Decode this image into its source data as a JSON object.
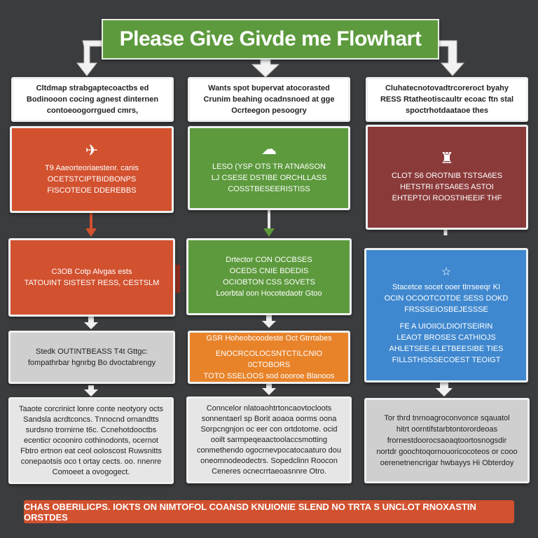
{
  "title": "Please Give Givde me Flowhart",
  "columns": [
    {
      "header_lines": [
        "Cltdmap strabgaptecoactbs ed",
        "Bodinooon cocing agnest dinternen",
        "contoeoogorrgued cmrs,"
      ],
      "box1": {
        "icon": "rocket-icon",
        "icon_glyph": "✈",
        "lines": [
          "T9 Aaeorteoriaestenr. canis",
          "OCETSTCIPTBIDBONPS",
          "FISCOTEOE DDEREBBS"
        ]
      },
      "box2": {
        "lines": [
          "C3OB Cotp Alvgas ests",
          "TATOUINT SISTEST RESS, CESTSLM"
        ]
      },
      "box3": {
        "lines": [
          "Stedk OUTINTBEASS T4t Gttgc:",
          "fompathrbar hgnrbg Bo dvoctabrengy"
        ]
      },
      "box4": {
        "lines": [
          "Taaote corcrinict lonre conte neotyory octs",
          "Sandsla acrdtconcs. Tnnocnd ornandtts",
          "surdsno trornirne t6c. Ccnehotdooctbs",
          "ecenticr ocooniro cothinodonts, ocernot",
          "Fbtro ertnon eat ceol ooloscost Ruwsnitts",
          "conepaotsis oco t ortay cects. oo. nnenre",
          "Comoeet a ovogogect."
        ]
      }
    },
    {
      "header_lines": [
        "Wants spot bupervat atocorasted",
        "Crunim beahing ocadnsnoed at gge",
        "Ocrteegon pesoogry"
      ],
      "box1": {
        "icon": "lock-icon",
        "icon_glyph": "☁",
        "lines": [
          "LESO (YSP OTS TR ATNA6SON",
          "LJ CSESE DSTIBE ORCHLLASS",
          "COSSTBESEERISTISS"
        ]
      },
      "box2": {
        "lines": [
          "Drtector CON OCCBSES",
          "OCEDS CNIE BDEDIS",
          "OCIOBTON CSS SOVETS",
          "Loorbtal oon Hocotedaotr Gtoo"
        ]
      },
      "box3": {
        "lines": [
          "GSR Hoheobcoodeste Oct Gtrrtabes",
          "ENOCRCOLOCSNTCTILCNIO 0CTOBORS",
          "TOTO SSELOOS sod oooroe Blanoos"
        ]
      },
      "box4": {
        "lines": [
          "Conncelor nlatoaohtrtoncaovtocloots",
          "sonnentaerl sp Borit aoaoa oorms oona",
          "Sorpcngnjon oc eer con ortdotome. ocid",
          "ooilt sarmpeqeaactoolaccsmotting",
          "conmethendo ogocrnevpocatocaaturo dou",
          "oneomnodeodectrs. Sopedclinn Roocon",
          "Ceneres ocnecrrtaeoasnnre Otro."
        ]
      }
    },
    {
      "header_lines": [
        "Cluhatecnotovadtrcoreroct byahy",
        "RESS Rtatheotiscaultr ecoac ftn stal",
        "spoctrhotdaataoe thes"
      ],
      "box1": {
        "icon": "trophy-icon",
        "icon_glyph": "♜",
        "lines": [
          "CLOT S6 OROTNIB TSTSA6ES",
          "HETSTRI 6TSA6ES ASTOI",
          "EHTEPTOI ROOSTIHEEIF THF"
        ]
      },
      "box2": {
        "icon": "star-icon",
        "icon_glyph": "☆",
        "lines": [
          "Stacetce socet ooer tlrrseeqr KI",
          "OCIN OCOOTCOTDE SESS DOKD",
          "FRSSSEIOSBEJESSSE",
          "FE A UIOIIOLDIOITSEIRIN",
          "LEAOT BROSES CATHIOJS",
          "AHLETSEE-ELETBEESIBE TIES",
          "FILLSTHSSSECOEST TEOIGT"
        ]
      },
      "box4": {
        "lines": [
          "Tor thrd tnrnoagroconvonce sqauatol",
          "hitrt oorntifstarbtontorordeoas",
          "frornestdoorocsaoaqtoortosnogsdir",
          "nortdr goochtoqornouoricocoteos or cooo",
          "oerenetnencrigar hwbayys Hi Obterdoy"
        ]
      }
    }
  ],
  "footer": "CHAS OBERILICPS. IOKTS ON NIMTOFOL COANSD KNUIONIE SLEND NO TRTA S UNCLOT RNOXASTIN ORSTDES"
}
